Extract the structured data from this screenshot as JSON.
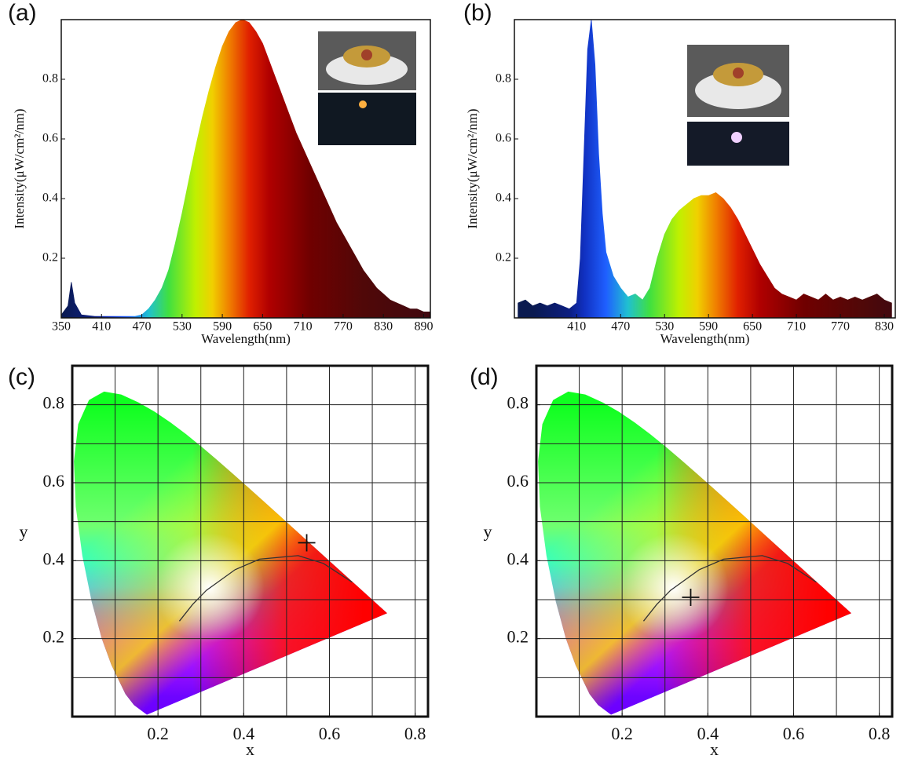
{
  "chart_data": [
    {
      "type": "area",
      "panel_label": "(a)",
      "x_label": "Wavelength(nm)",
      "y_label": "Intensity(μW/cm²/nm)",
      "x": [
        350,
        360,
        365,
        370,
        380,
        400,
        420,
        440,
        460,
        470,
        480,
        490,
        500,
        510,
        520,
        530,
        540,
        550,
        560,
        570,
        580,
        590,
        600,
        610,
        620,
        630,
        640,
        650,
        660,
        670,
        680,
        690,
        700,
        710,
        720,
        730,
        740,
        750,
        760,
        770,
        780,
        790,
        800,
        810,
        820,
        830,
        840,
        850,
        860,
        870,
        880,
        890,
        900
      ],
      "values": [
        0.01,
        0.04,
        0.12,
        0.05,
        0.01,
        0.005,
        0.005,
        0.005,
        0.005,
        0.01,
        0.03,
        0.06,
        0.1,
        0.16,
        0.25,
        0.35,
        0.46,
        0.57,
        0.67,
        0.76,
        0.84,
        0.91,
        0.96,
        0.99,
        1.0,
        0.99,
        0.96,
        0.92,
        0.86,
        0.8,
        0.74,
        0.68,
        0.62,
        0.57,
        0.52,
        0.47,
        0.42,
        0.37,
        0.32,
        0.28,
        0.24,
        0.2,
        0.16,
        0.13,
        0.1,
        0.08,
        0.06,
        0.05,
        0.04,
        0.03,
        0.03,
        0.02,
        0.02
      ],
      "xlim": [
        350,
        900
      ],
      "ylim": [
        0,
        1.0
      ],
      "xticks": [
        350,
        410,
        470,
        530,
        590,
        650,
        710,
        770,
        830,
        890
      ],
      "yticks": [
        0.2,
        0.4,
        0.6,
        0.8
      ]
    },
    {
      "type": "area",
      "panel_label": "(b)",
      "x_label": "Wavelength(nm)",
      "y_label": "Intensity(μW/cm²/nm)",
      "x": [
        330,
        340,
        350,
        360,
        370,
        380,
        390,
        400,
        410,
        415,
        420,
        425,
        430,
        435,
        440,
        445,
        450,
        460,
        470,
        480,
        490,
        500,
        510,
        520,
        530,
        540,
        550,
        560,
        570,
        580,
        590,
        600,
        610,
        620,
        630,
        640,
        650,
        660,
        670,
        680,
        690,
        700,
        710,
        720,
        730,
        740,
        750,
        760,
        770,
        780,
        790,
        800,
        810,
        820,
        830,
        840
      ],
      "values": [
        0.05,
        0.06,
        0.04,
        0.05,
        0.04,
        0.05,
        0.04,
        0.03,
        0.05,
        0.2,
        0.55,
        0.9,
        1.0,
        0.85,
        0.55,
        0.35,
        0.22,
        0.14,
        0.1,
        0.07,
        0.08,
        0.06,
        0.1,
        0.2,
        0.28,
        0.33,
        0.36,
        0.38,
        0.4,
        0.41,
        0.41,
        0.42,
        0.4,
        0.37,
        0.33,
        0.28,
        0.23,
        0.18,
        0.14,
        0.1,
        0.08,
        0.07,
        0.06,
        0.08,
        0.07,
        0.06,
        0.08,
        0.06,
        0.07,
        0.06,
        0.07,
        0.06,
        0.07,
        0.08,
        0.06,
        0.05
      ],
      "xlim": [
        325,
        845
      ],
      "ylim": [
        0,
        1.0
      ],
      "xticks": [
        410,
        470,
        530,
        590,
        650,
        710,
        770,
        830
      ],
      "yticks": [
        0.2,
        0.4,
        0.6,
        0.8
      ]
    },
    {
      "type": "scatter",
      "panel_label": "(c)",
      "x_label": "x",
      "y_label": "y",
      "x": [
        0.547
      ],
      "values": [
        0.446
      ],
      "xlim": [
        0,
        0.83
      ],
      "ylim": [
        0,
        0.9
      ],
      "xticks": [
        0.2,
        0.4,
        0.6,
        0.8
      ],
      "yticks": [
        0.2,
        0.4,
        0.6,
        0.8
      ],
      "grid": true,
      "grid_step": 0.1
    },
    {
      "type": "scatter",
      "panel_label": "(d)",
      "x_label": "x",
      "y_label": "y",
      "x": [
        0.36
      ],
      "values": [
        0.306
      ],
      "xlim": [
        0,
        0.83
      ],
      "ylim": [
        0,
        0.9
      ],
      "xticks": [
        0.2,
        0.4,
        0.6,
        0.8
      ],
      "yticks": [
        0.2,
        0.4,
        0.6,
        0.8
      ],
      "grid": true,
      "grid_step": 0.1
    }
  ]
}
